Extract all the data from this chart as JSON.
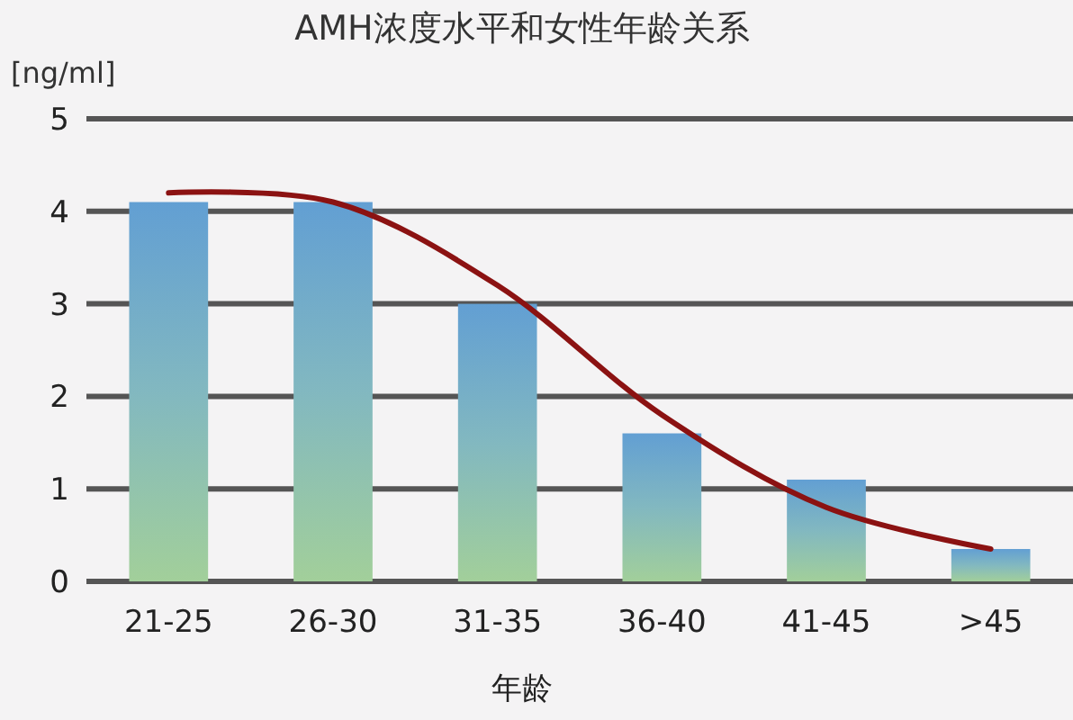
{
  "chart_data": {
    "type": "bar",
    "title": "AMH浓度水平和女性年龄关系",
    "ylabel": "[ng/ml]",
    "xlabel": "年龄",
    "categories": [
      "21-25",
      "26-30",
      "31-35",
      "36-40",
      "41-45",
      ">45"
    ],
    "series": [
      {
        "color": "#82b8c0",
        "values": [
          4.1,
          4.1,
          3.0,
          1.6,
          1.1,
          0.35
        ]
      },
      {
        "type": "line",
        "color": "#8b1212",
        "values": [
          4.2,
          4.1,
          3.2,
          1.8,
          0.8,
          0.35
        ]
      }
    ],
    "ylim": [
      0,
      5
    ],
    "yticks": [
      0,
      1,
      2,
      3,
      4,
      5
    ],
    "grid": "y"
  }
}
